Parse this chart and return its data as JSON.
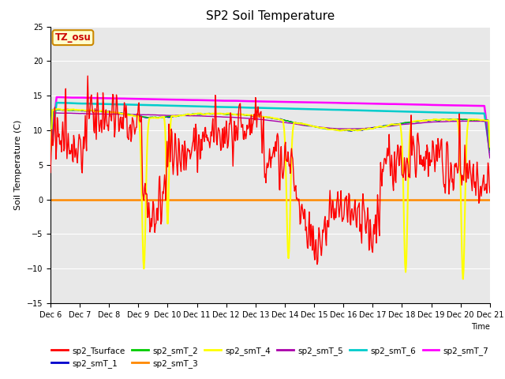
{
  "title": "SP2 Soil Temperature",
  "ylabel": "Soil Temperature (C)",
  "xlabel": "Time",
  "ylim": [
    -15,
    25
  ],
  "xlim": [
    0,
    360
  ],
  "tz_label": "TZ_osu",
  "series_colors": {
    "sp2_Tsurface": "#ff0000",
    "sp2_smT_1": "#0000cc",
    "sp2_smT_2": "#00cc00",
    "sp2_smT_3": "#ff8800",
    "sp2_smT_4": "#ffff00",
    "sp2_smT_5": "#aa00aa",
    "sp2_smT_6": "#00cccc",
    "sp2_smT_7": "#ff00ff"
  },
  "x_tick_labels": [
    "Dec 6",
    "Dec 7",
    "Dec 8",
    "Dec 9",
    "Dec 10",
    "Dec 11",
    "Dec 12",
    "Dec 13",
    "Dec 14",
    "Dec 15",
    "Dec 16",
    "Dec 17",
    "Dec 18",
    "Dec 19",
    "Dec 20",
    "Dec 21"
  ],
  "x_tick_positions": [
    0,
    24,
    48,
    72,
    96,
    120,
    144,
    168,
    192,
    216,
    240,
    264,
    288,
    312,
    336,
    360
  ],
  "plot_bg_color": "#e8e8e8",
  "linewidth": 1.0,
  "title_fontsize": 11,
  "tick_fontsize": 7,
  "axis_label_fontsize": 8
}
